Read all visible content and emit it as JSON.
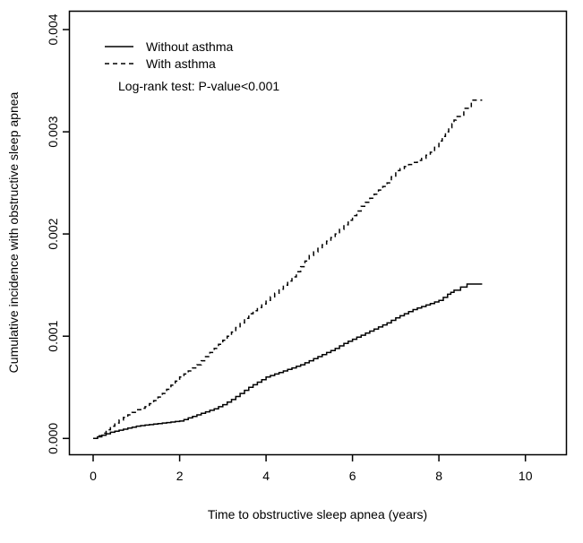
{
  "figure": {
    "background": "#ffffff",
    "ink_color": "#000000"
  },
  "chart_data": {
    "type": "line",
    "subtype": "step-cumulative-incidence",
    "title": "",
    "xlabel": "Time to obstructive sleep apnea (years)",
    "ylabel": "Cumulative incidence with obstructive sleep apnea",
    "annotation": "Log-rank test: P-value<0.001",
    "grid": false,
    "legend_position": "top-left-inside",
    "xlim": [
      -0.55,
      10.95
    ],
    "ylim": [
      -0.00016,
      0.00418
    ],
    "x_ticks": [
      0,
      2,
      4,
      6,
      8,
      10
    ],
    "x_tick_labels": [
      "0",
      "2",
      "4",
      "6",
      "8",
      "10"
    ],
    "y_ticks": [
      0,
      0.001,
      0.002,
      0.003,
      0.004
    ],
    "y_tick_labels": [
      "0.000",
      "0.001",
      "0.002",
      "0.003",
      "0.004"
    ],
    "series": [
      {
        "name": "Without asthma",
        "line_style": "solid",
        "color": "#000000",
        "x": [
          0,
          0.2,
          0.4,
          0.6,
          0.8,
          1.0,
          1.2,
          1.4,
          1.6,
          1.8,
          2.0,
          2.2,
          2.4,
          2.6,
          2.8,
          3.0,
          3.2,
          3.4,
          3.6,
          3.8,
          4.0,
          4.2,
          4.4,
          4.6,
          4.8,
          5.0,
          5.2,
          5.4,
          5.6,
          5.8,
          6.0,
          6.2,
          6.4,
          6.6,
          6.8,
          7.0,
          7.2,
          7.4,
          7.6,
          7.8,
          8.0,
          8.2,
          8.35,
          8.65,
          9.0
        ],
        "y": [
          0,
          3e-05,
          6e-05,
          8e-05,
          0.0001,
          0.00012,
          0.00013,
          0.00014,
          0.00015,
          0.00016,
          0.00017,
          0.0002,
          0.00023,
          0.00026,
          0.00029,
          0.00033,
          0.00038,
          0.00044,
          0.0005,
          0.00055,
          0.0006,
          0.00063,
          0.00066,
          0.00069,
          0.00072,
          0.00076,
          0.0008,
          0.00084,
          0.00088,
          0.00093,
          0.00097,
          0.00101,
          0.00105,
          0.00109,
          0.00113,
          0.00118,
          0.00122,
          0.00126,
          0.00129,
          0.00132,
          0.00135,
          0.00141,
          0.00145,
          0.00151,
          0.00151
        ]
      },
      {
        "name": "With asthma",
        "line_style": "dashed",
        "color": "#000000",
        "x": [
          0,
          0.2,
          0.4,
          0.6,
          0.8,
          1.0,
          1.2,
          1.4,
          1.6,
          1.8,
          2.0,
          2.2,
          2.4,
          2.6,
          2.8,
          3.0,
          3.2,
          3.4,
          3.6,
          3.8,
          4.0,
          4.2,
          4.4,
          4.6,
          4.8,
          5.0,
          5.2,
          5.4,
          5.6,
          5.8,
          6.0,
          6.2,
          6.4,
          6.6,
          6.8,
          7.0,
          7.2,
          7.4,
          7.6,
          7.8,
          8.0,
          8.15,
          8.3,
          8.4,
          8.75,
          9.0
        ],
        "y": [
          0,
          5e-05,
          0.00012,
          0.00018,
          0.00023,
          0.00028,
          0.00031,
          0.00037,
          0.00044,
          0.00052,
          0.0006,
          0.00066,
          0.00072,
          0.0008,
          0.00088,
          0.00096,
          0.00104,
          0.00113,
          0.00122,
          0.00128,
          0.00135,
          0.00142,
          0.0015,
          0.00158,
          0.00168,
          0.00179,
          0.00186,
          0.00193,
          0.002,
          0.00209,
          0.00218,
          0.00227,
          0.00235,
          0.00243,
          0.0025,
          0.00262,
          0.00266,
          0.0027,
          0.00274,
          0.0028,
          0.00291,
          0.003,
          0.00308,
          0.00315,
          0.00331,
          0.00331
        ]
      }
    ]
  }
}
